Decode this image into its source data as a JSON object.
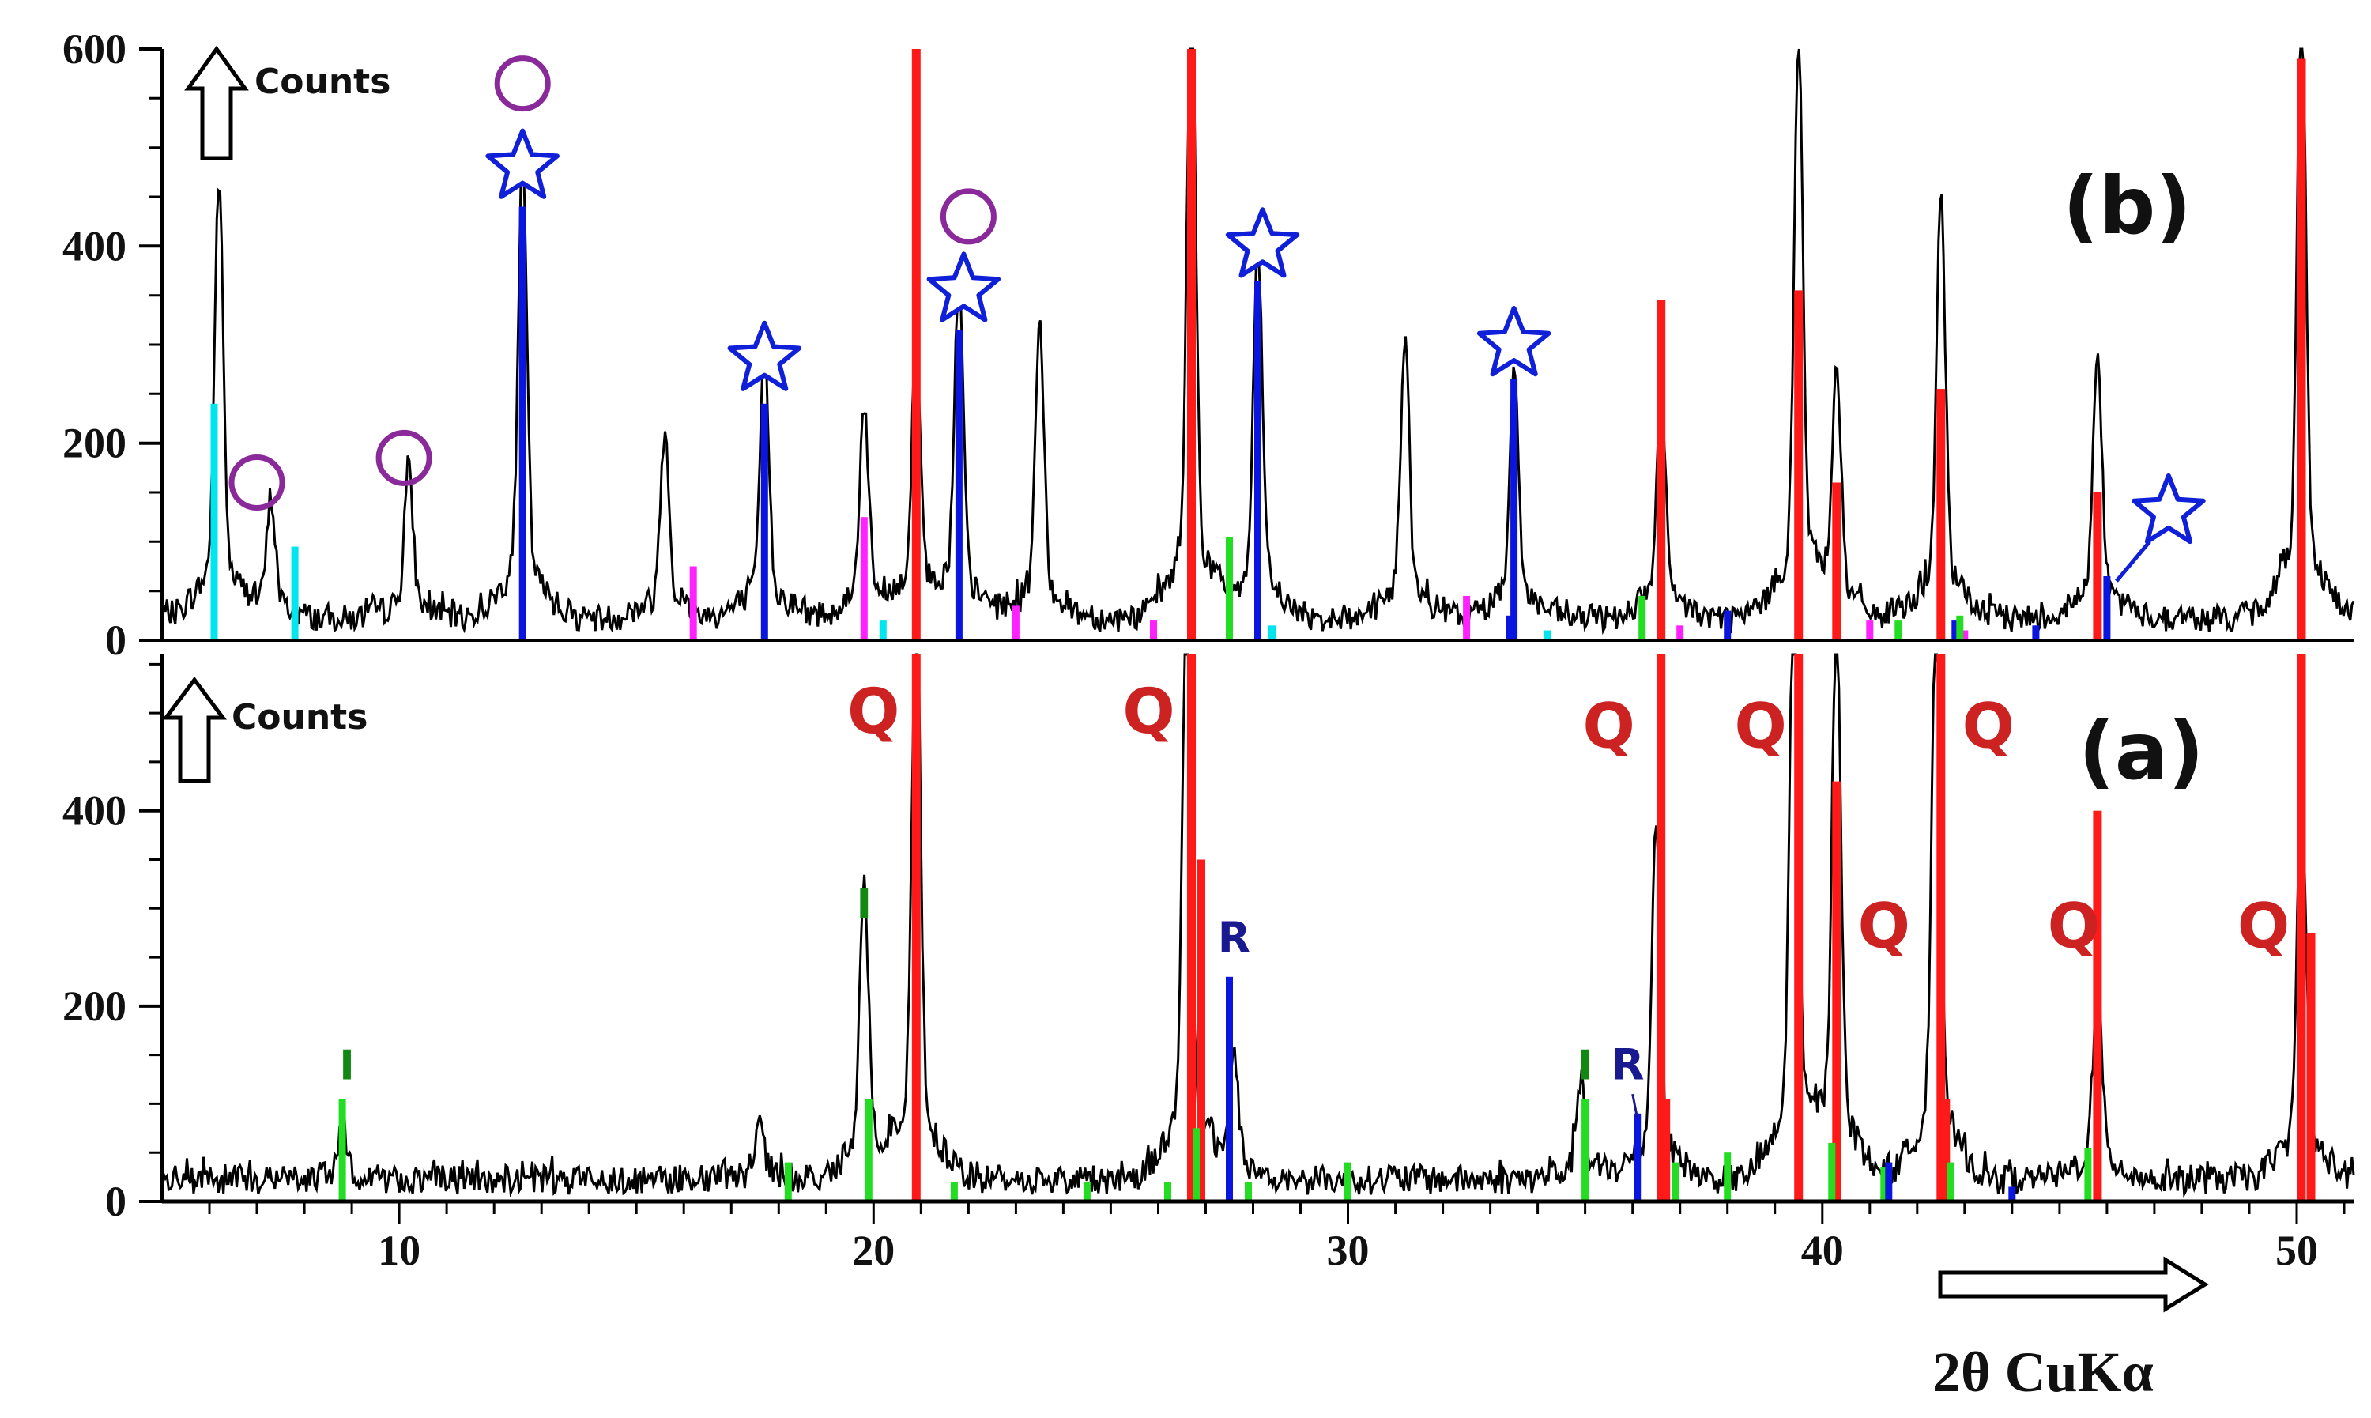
{
  "chart_data": [
    {
      "type": "line",
      "panel": "(b)",
      "y_axis_label": "Counts",
      "ylim": [
        0,
        600
      ],
      "y_ticks": [
        "0",
        "200",
        "400",
        "600"
      ],
      "xlim": [
        5,
        51.2
      ],
      "trace_peaks": [
        {
          "x": 6.2,
          "y": 415
        },
        {
          "x": 7.3,
          "y": 110
        },
        {
          "x": 10.2,
          "y": 140
        },
        {
          "x": 12.6,
          "y": 430
        },
        {
          "x": 15.6,
          "y": 180
        },
        {
          "x": 17.7,
          "y": 255
        },
        {
          "x": 19.8,
          "y": 205
        },
        {
          "x": 20.9,
          "y": 260
        },
        {
          "x": 21.8,
          "y": 315
        },
        {
          "x": 23.5,
          "y": 275
        },
        {
          "x": 26.7,
          "y": 600
        },
        {
          "x": 28.1,
          "y": 355
        },
        {
          "x": 31.2,
          "y": 260
        },
        {
          "x": 33.5,
          "y": 240
        },
        {
          "x": 36.6,
          "y": 210
        },
        {
          "x": 39.5,
          "y": 545
        },
        {
          "x": 40.3,
          "y": 230
        },
        {
          "x": 42.5,
          "y": 400
        },
        {
          "x": 45.8,
          "y": 260
        },
        {
          "x": 50.1,
          "y": 600
        }
      ],
      "series": [
        {
          "name": "Q",
          "color": "#ff1a1a",
          "sticks": [
            {
              "x": 20.9,
              "y": 600
            },
            {
              "x": 26.7,
              "y": 600
            },
            {
              "x": 36.6,
              "y": 345
            },
            {
              "x": 39.5,
              "y": 355
            },
            {
              "x": 40.3,
              "y": 160
            },
            {
              "x": 42.5,
              "y": 255
            },
            {
              "x": 45.8,
              "y": 150
            },
            {
              "x": 50.1,
              "y": 590
            }
          ]
        },
        {
          "name": "star",
          "color": "#0a16e0",
          "sticks": [
            {
              "x": 12.6,
              "y": 440
            },
            {
              "x": 17.7,
              "y": 240
            },
            {
              "x": 21.8,
              "y": 315
            },
            {
              "x": 28.1,
              "y": 365
            },
            {
              "x": 33.5,
              "y": 265
            },
            {
              "x": 46.0,
              "y": 65
            },
            {
              "x": 33.4,
              "y": 25
            },
            {
              "x": 38.0,
              "y": 30
            },
            {
              "x": 42.8,
              "y": 20
            },
            {
              "x": 44.5,
              "y": 15
            }
          ]
        },
        {
          "name": "cyan",
          "color": "#00e5ee",
          "sticks": [
            {
              "x": 6.1,
              "y": 240
            },
            {
              "x": 7.8,
              "y": 95
            },
            {
              "x": 20.2,
              "y": 20
            },
            {
              "x": 28.4,
              "y": 15
            },
            {
              "x": 34.2,
              "y": 10
            }
          ]
        },
        {
          "name": "magenta",
          "color": "#ff22ff",
          "sticks": [
            {
              "x": 16.2,
              "y": 75
            },
            {
              "x": 19.8,
              "y": 125
            },
            {
              "x": 23.0,
              "y": 35
            },
            {
              "x": 25.9,
              "y": 20
            },
            {
              "x": 32.5,
              "y": 45
            },
            {
              "x": 37.0,
              "y": 15
            },
            {
              "x": 41.0,
              "y": 20
            },
            {
              "x": 43.0,
              "y": 10
            }
          ]
        },
        {
          "name": "green",
          "color": "#22dd22",
          "sticks": [
            {
              "x": 27.5,
              "y": 105
            },
            {
              "x": 36.2,
              "y": 45
            },
            {
              "x": 41.6,
              "y": 20
            },
            {
              "x": 42.9,
              "y": 25
            }
          ]
        }
      ],
      "markers": [
        {
          "shape": "circle",
          "x": 7.0,
          "y": 160
        },
        {
          "shape": "circle",
          "x": 10.1,
          "y": 185
        },
        {
          "shape": "circle",
          "x": 12.6,
          "y": 565
        },
        {
          "shape": "circle",
          "x": 22.0,
          "y": 430
        },
        {
          "shape": "star",
          "x": 12.6,
          "y": 480
        },
        {
          "shape": "star",
          "x": 17.7,
          "y": 285
        },
        {
          "shape": "star",
          "x": 21.9,
          "y": 355
        },
        {
          "shape": "star",
          "x": 28.2,
          "y": 400
        },
        {
          "shape": "star",
          "x": 33.5,
          "y": 300
        },
        {
          "shape": "star",
          "x": 47.3,
          "y": 130
        }
      ]
    },
    {
      "type": "line",
      "panel": "(a)",
      "y_axis_label": "Counts",
      "ylim": [
        0,
        560
      ],
      "y_ticks": [
        "0",
        "200",
        "400"
      ],
      "xlim": [
        5,
        51.2
      ],
      "x_ticks": [
        "10",
        "20",
        "30",
        "40",
        "50"
      ],
      "xlabel": "2θ CuKα",
      "trace_peaks": [
        {
          "x": 8.8,
          "y": 50
        },
        {
          "x": 17.6,
          "y": 55
        },
        {
          "x": 19.8,
          "y": 280
        },
        {
          "x": 20.9,
          "y": 560
        },
        {
          "x": 26.6,
          "y": 560
        },
        {
          "x": 27.6,
          "y": 115
        },
        {
          "x": 34.9,
          "y": 95
        },
        {
          "x": 36.5,
          "y": 340
        },
        {
          "x": 39.4,
          "y": 560
        },
        {
          "x": 40.3,
          "y": 540
        },
        {
          "x": 42.4,
          "y": 560
        },
        {
          "x": 45.8,
          "y": 190
        },
        {
          "x": 50.1,
          "y": 385
        }
      ],
      "series": [
        {
          "name": "Q",
          "color": "#ff1a1a",
          "sticks": [
            {
              "x": 20.9,
              "y": 560
            },
            {
              "x": 26.7,
              "y": 560
            },
            {
              "x": 26.9,
              "y": 350
            },
            {
              "x": 36.6,
              "y": 560
            },
            {
              "x": 36.7,
              "y": 105
            },
            {
              "x": 39.5,
              "y": 560
            },
            {
              "x": 40.3,
              "y": 430
            },
            {
              "x": 42.5,
              "y": 560
            },
            {
              "x": 42.6,
              "y": 105
            },
            {
              "x": 45.8,
              "y": 400
            },
            {
              "x": 50.1,
              "y": 560
            },
            {
              "x": 50.3,
              "y": 275
            }
          ]
        },
        {
          "name": "I",
          "color": "#22dd22",
          "sticks": [
            {
              "x": 8.8,
              "y": 105
            },
            {
              "x": 18.2,
              "y": 40
            },
            {
              "x": 19.9,
              "y": 105
            },
            {
              "x": 21.7,
              "y": 20
            },
            {
              "x": 24.5,
              "y": 20
            },
            {
              "x": 26.2,
              "y": 20
            },
            {
              "x": 26.8,
              "y": 75
            },
            {
              "x": 27.9,
              "y": 20
            },
            {
              "x": 30.0,
              "y": 40
            },
            {
              "x": 35.0,
              "y": 105
            },
            {
              "x": 36.9,
              "y": 40
            },
            {
              "x": 38.0,
              "y": 50
            },
            {
              "x": 40.2,
              "y": 60
            },
            {
              "x": 41.3,
              "y": 35
            },
            {
              "x": 42.7,
              "y": 40
            },
            {
              "x": 45.6,
              "y": 55
            }
          ]
        },
        {
          "name": "R",
          "color": "#0a16e0",
          "sticks": [
            {
              "x": 27.5,
              "y": 230
            },
            {
              "x": 36.1,
              "y": 90
            },
            {
              "x": 41.4,
              "y": 40
            },
            {
              "x": 44.0,
              "y": 15
            }
          ]
        }
      ],
      "labels": [
        {
          "text": "Q",
          "x": 20.0,
          "y": 480,
          "color": "#cc2222"
        },
        {
          "text": "Q",
          "x": 25.8,
          "y": 480,
          "color": "#cc2222"
        },
        {
          "text": "Q",
          "x": 35.5,
          "y": 465,
          "color": "#cc2222"
        },
        {
          "text": "Q",
          "x": 38.7,
          "y": 465,
          "color": "#cc2222"
        },
        {
          "text": "Q",
          "x": 43.5,
          "y": 465,
          "color": "#cc2222"
        },
        {
          "text": "Q",
          "x": 41.3,
          "y": 260,
          "color": "#cc2222"
        },
        {
          "text": "Q",
          "x": 45.3,
          "y": 260,
          "color": "#cc2222"
        },
        {
          "text": "Q",
          "x": 49.3,
          "y": 260,
          "color": "#cc2222"
        },
        {
          "text": "R",
          "x": 27.6,
          "y": 255,
          "color": "#1a1a90"
        },
        {
          "text": "R",
          "x": 35.9,
          "y": 125,
          "color": "#1a1a90"
        },
        {
          "text": "I",
          "x": 19.8,
          "y": 290,
          "color": "#118811"
        },
        {
          "text": "I",
          "x": 8.9,
          "y": 125,
          "color": "#118811"
        },
        {
          "text": "I",
          "x": 35.0,
          "y": 125,
          "color": "#118811"
        }
      ]
    }
  ]
}
